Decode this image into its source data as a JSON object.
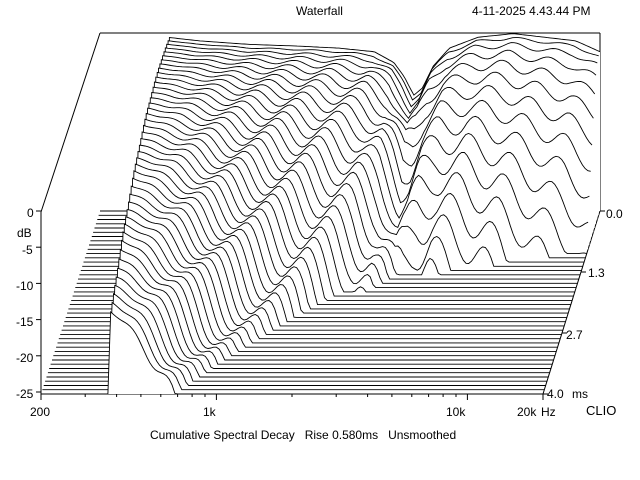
{
  "header": {
    "title": "Waterfall",
    "timestamp": "4-11-2025 4.43.44 PM"
  },
  "footer": {
    "caption": "Cumulative Spectral Decay   Rise 0.580ms   Unsmoothed",
    "brand": "CLIO"
  },
  "chart_data": {
    "type": "waterfall",
    "title": "Waterfall",
    "xlabel": "Hz",
    "ylabel": "dB",
    "zlabel": "ms",
    "x_scale": "log",
    "xlim": [
      200,
      20000
    ],
    "ylim": [
      -25,
      0
    ],
    "zlim": [
      0,
      4.0
    ],
    "x_ticks": [
      "200",
      "1k",
      "10k",
      "20k"
    ],
    "y_ticks": [
      "0",
      "-5",
      "-10",
      "-15",
      "-20",
      "-25"
    ],
    "z_ticks": [
      "0.0",
      "1.3",
      "2.7",
      "4.0"
    ],
    "slice_count": 44,
    "x_data_start_hz": 370,
    "initial_response_db": {
      "freq_hz": [
        370,
        500,
        800,
        1200,
        1800,
        2500,
        3000,
        3300,
        3600,
        3900,
        4300,
        5000,
        6500,
        9000,
        12000,
        16000,
        20000
      ],
      "db": [
        -1.0,
        -1.5,
        -2.0,
        -2.2,
        -2.5,
        -3.0,
        -4.5,
        -6.5,
        -9.0,
        -8.0,
        -5.0,
        -2.5,
        -1.0,
        -0.5,
        -1.0,
        -1.5,
        -3.0
      ]
    }
  }
}
